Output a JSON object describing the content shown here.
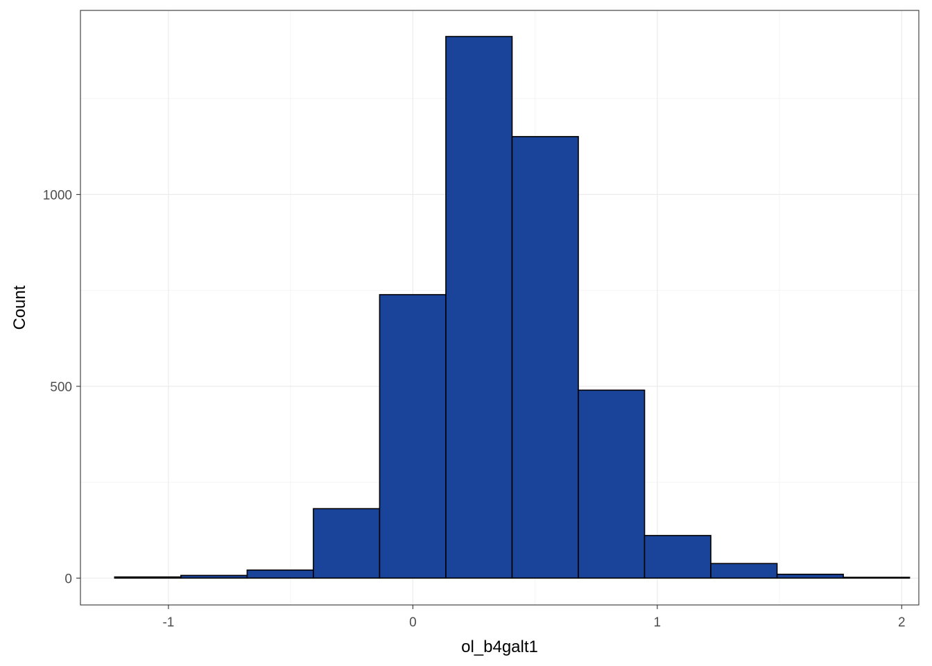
{
  "chart_data": {
    "type": "bar",
    "title": "",
    "xlabel": "ol_b4galt1",
    "ylabel": "Count",
    "xlim": [
      -1.36,
      2.07
    ],
    "ylim": [
      -70,
      1480
    ],
    "x_ticks": [
      -1,
      0,
      1,
      2
    ],
    "x_tick_labels": [
      "-1",
      "0",
      "1",
      "2"
    ],
    "y_ticks": [
      0,
      500,
      1000
    ],
    "y_tick_labels": [
      "0",
      "500",
      "1000"
    ],
    "grid": true,
    "legend": "none",
    "bin_width": 0.271,
    "bins": [
      {
        "x_start": -1.22,
        "x_end": -0.949,
        "count": 3
      },
      {
        "x_start": -0.949,
        "x_end": -0.678,
        "count": 7
      },
      {
        "x_start": -0.678,
        "x_end": -0.407,
        "count": 21
      },
      {
        "x_start": -0.407,
        "x_end": -0.136,
        "count": 181
      },
      {
        "x_start": -0.136,
        "x_end": 0.135,
        "count": 739
      },
      {
        "x_start": 0.135,
        "x_end": 0.406,
        "count": 1412
      },
      {
        "x_start": 0.406,
        "x_end": 0.677,
        "count": 1151
      },
      {
        "x_start": 0.677,
        "x_end": 0.948,
        "count": 490
      },
      {
        "x_start": 0.948,
        "x_end": 1.219,
        "count": 111
      },
      {
        "x_start": 1.219,
        "x_end": 1.49,
        "count": 38
      },
      {
        "x_start": 1.49,
        "x_end": 1.761,
        "count": 10
      },
      {
        "x_start": 1.761,
        "x_end": 2.032,
        "count": 2
      }
    ],
    "colors": {
      "bar_fill": "#1a4499",
      "bar_outline": "#000000",
      "panel_background": "#ffffff",
      "panel_border": "#333333",
      "grid_major": "#ebebeb",
      "grid_minor": "#f4f4f4"
    }
  }
}
